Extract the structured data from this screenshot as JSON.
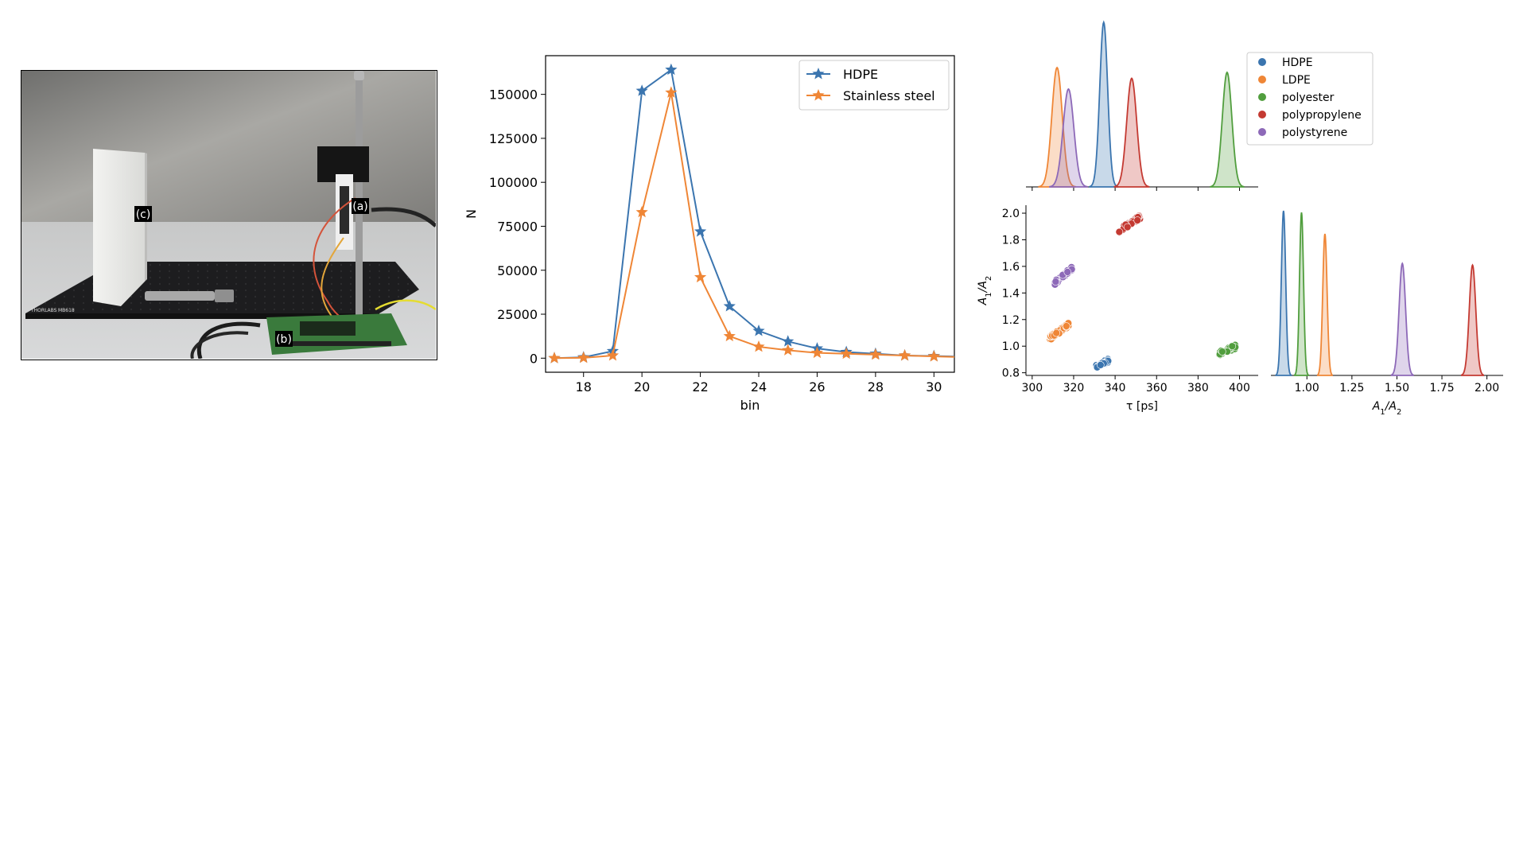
{
  "photo": {
    "label_a": "(a)",
    "label_b": "(b)",
    "label_c": "(c)",
    "brand": "THORLABS",
    "model": "MB618"
  },
  "chart_data": [
    {
      "type": "line",
      "xlabel": "bin",
      "ylabel": "N",
      "x": [
        17,
        18,
        19,
        20,
        21,
        22,
        23,
        24,
        25,
        26,
        27,
        28,
        29,
        30,
        31
      ],
      "xlim": [
        16.7,
        30.7
      ],
      "ylim": [
        -8000,
        172000
      ],
      "xticks": [
        18,
        20,
        22,
        24,
        26,
        28,
        30
      ],
      "yticks": [
        0,
        25000,
        50000,
        75000,
        100000,
        125000,
        150000
      ],
      "legend": "top-right",
      "grid": false,
      "series": [
        {
          "name": "HDPE",
          "color": "#3b75af",
          "marker": "star",
          "values": [
            0,
            500,
            4000,
            152000,
            164000,
            72000,
            29500,
            15500,
            9500,
            5500,
            3500,
            2500,
            1500,
            1200,
            800
          ]
        },
        {
          "name": "Stainless steel",
          "color": "#ef8636",
          "marker": "star",
          "values": [
            0,
            200,
            1500,
            83000,
            151000,
            46000,
            12500,
            6500,
            4500,
            3000,
            2500,
            2000,
            1500,
            1000,
            600
          ]
        }
      ]
    },
    {
      "type": "scatter",
      "xlabel": "τ [ps]",
      "ylabel": "A1/A2",
      "xlim": [
        297,
        409
      ],
      "ylim": [
        0.78,
        2.06
      ],
      "xticks": [
        300,
        320,
        340,
        360,
        380,
        400
      ],
      "yticks": [
        0.8,
        1.0,
        1.2,
        1.4,
        1.6,
        1.8,
        2.0
      ],
      "clusters": [
        {
          "name": "HDPE",
          "color": "#3b75af",
          "center": [
            334,
            0.87
          ],
          "spread": [
            6,
            0.05
          ]
        },
        {
          "name": "LDPE",
          "color": "#ef8636",
          "center": [
            313,
            1.11
          ],
          "spread": [
            9,
            0.1
          ]
        },
        {
          "name": "polyester",
          "color": "#519e3e",
          "center": [
            394,
            0.97
          ],
          "spread": [
            8,
            0.05
          ]
        },
        {
          "name": "polypropylene",
          "color": "#c43a32",
          "center": [
            347,
            1.92
          ],
          "spread": [
            10,
            0.1
          ]
        },
        {
          "name": "polystyrene",
          "color": "#8d69b8",
          "center": [
            315,
            1.53
          ],
          "spread": [
            9,
            0.12
          ]
        }
      ]
    },
    {
      "type": "area",
      "description_axis": "τ [ps] density",
      "xlim": [
        297,
        409
      ],
      "series": [
        {
          "name": "LDPE",
          "color": "#ef8636",
          "peak": 312,
          "width": 2.5,
          "height": 1.0
        },
        {
          "name": "polystyrene",
          "color": "#8d69b8",
          "peak": 317.5,
          "width": 2.6,
          "height": 0.82
        },
        {
          "name": "HDPE",
          "color": "#3b75af",
          "peak": 334.5,
          "width": 1.9,
          "height": 1.38
        },
        {
          "name": "polypropylene",
          "color": "#c43a32",
          "peak": 348,
          "width": 2.4,
          "height": 0.91
        },
        {
          "name": "polyester",
          "color": "#519e3e",
          "peak": 394,
          "width": 2.3,
          "height": 0.96
        }
      ]
    },
    {
      "type": "area",
      "xlabel": "A1/A2",
      "xlim": [
        0.8,
        2.09
      ],
      "xticks": [
        1.0,
        1.25,
        1.5,
        1.75,
        2.0
      ],
      "series": [
        {
          "name": "HDPE",
          "color": "#3b75af",
          "peak": 0.87,
          "width": 0.012,
          "height": 1.0
        },
        {
          "name": "polyester",
          "color": "#519e3e",
          "peak": 0.97,
          "width": 0.011,
          "height": 0.99
        },
        {
          "name": "LDPE",
          "color": "#ef8636",
          "peak": 1.1,
          "width": 0.012,
          "height": 0.86
        },
        {
          "name": "polystyrene",
          "color": "#8d69b8",
          "peak": 1.53,
          "width": 0.018,
          "height": 0.68
        },
        {
          "name": "polypropylene",
          "color": "#c43a32",
          "peak": 1.92,
          "width": 0.018,
          "height": 0.67
        }
      ]
    }
  ],
  "legend_materials": {
    "entries": [
      {
        "name": "HDPE",
        "color": "#3b75af"
      },
      {
        "name": "LDPE",
        "color": "#ef8636"
      },
      {
        "name": "polyester",
        "color": "#519e3e"
      },
      {
        "name": "polypropylene",
        "color": "#c43a32"
      },
      {
        "name": "polystyrene",
        "color": "#8d69b8"
      }
    ]
  }
}
